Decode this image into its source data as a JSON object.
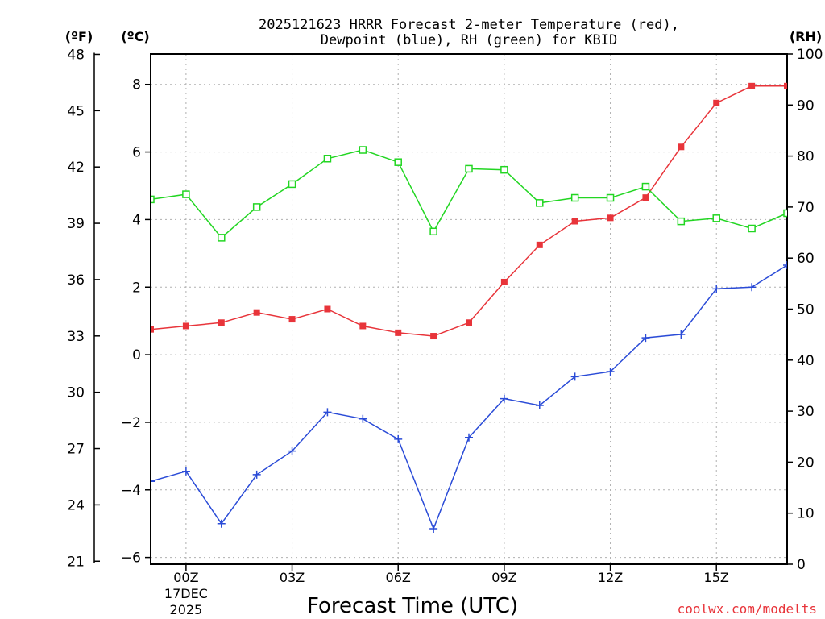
{
  "chart_data": {
    "type": "line",
    "title_lines": [
      "2025121623 HRRR Forecast 2-meter Temperature (red),",
      "Dewpoint (blue), RH (green) for KBID"
    ],
    "xlabel": "Forecast Time (UTC)",
    "x_hours": [
      -1,
      0,
      1,
      2,
      3,
      4,
      5,
      6,
      7,
      8,
      9,
      10,
      11,
      12,
      13,
      14,
      15,
      16,
      17
    ],
    "x_ticks": [
      {
        "hour": 0,
        "label": "00Z",
        "sub1": "17DEC",
        "sub2": "2025"
      },
      {
        "hour": 3,
        "label": "03Z"
      },
      {
        "hour": 6,
        "label": "06Z"
      },
      {
        "hour": 9,
        "label": "09Z"
      },
      {
        "hour": 12,
        "label": "12Z"
      },
      {
        "hour": 15,
        "label": "15Z"
      }
    ],
    "xlim": [
      -1,
      17
    ],
    "celsius_axis": {
      "unit_label": "(ºC)",
      "ylim": [
        -6.2,
        8.9
      ],
      "ticks": [
        -6,
        -4,
        -2,
        0,
        2,
        4,
        6,
        8
      ]
    },
    "fahrenheit_axis": {
      "unit_label": "(ºF)",
      "ticks": [
        21,
        24,
        27,
        30,
        33,
        36,
        39,
        42,
        45,
        48
      ]
    },
    "rh_axis": {
      "unit_label": "(RH)",
      "ylim": [
        0,
        100
      ],
      "ticks": [
        0,
        10,
        20,
        30,
        40,
        50,
        60,
        70,
        80,
        90,
        100
      ]
    },
    "series": [
      {
        "name": "Temperature",
        "axis": "celsius",
        "color": "#e8343a",
        "marker": "square-filled",
        "values": [
          0.75,
          0.85,
          0.95,
          1.25,
          1.05,
          1.35,
          0.85,
          0.65,
          0.55,
          0.95,
          2.15,
          3.25,
          3.95,
          4.05,
          4.65,
          6.15,
          7.45,
          7.95,
          7.95
        ]
      },
      {
        "name": "Dewpoint",
        "axis": "celsius",
        "color": "#2a4bd7",
        "marker": "plus",
        "values": [
          -3.75,
          -3.45,
          -5.0,
          -3.55,
          -2.85,
          -1.7,
          -1.9,
          -2.5,
          -5.15,
          -2.45,
          -1.3,
          -1.5,
          -0.65,
          -0.5,
          0.5,
          0.6,
          1.95,
          2.0,
          2.65
        ]
      },
      {
        "name": "RH",
        "axis": "rh",
        "color": "#22d622",
        "marker": "square-open",
        "values": [
          71.5,
          72.5,
          64,
          70,
          74.5,
          79.5,
          81.2,
          78.8,
          65.2,
          77.5,
          77.3,
          70.8,
          71.8,
          71.8,
          74,
          67.2,
          67.8,
          65.8,
          68.8
        ]
      }
    ],
    "grid": true,
    "watermark": "coolwx.com/modelts"
  }
}
